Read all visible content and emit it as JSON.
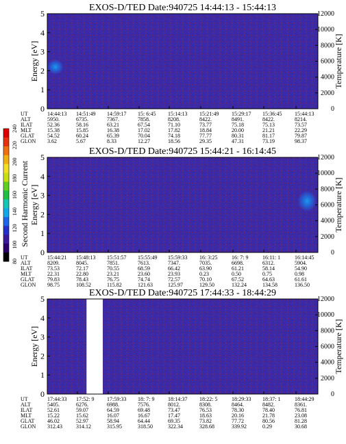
{
  "colorbar": {
    "label": "Second Harmonic Current",
    "ticks": [
      "80",
      "100",
      "120",
      "140",
      "160",
      "180",
      "200",
      "220",
      "240"
    ],
    "colors": [
      "#000000",
      "#2a0068",
      "#3a1a9a",
      "#2430c8",
      "#1d66ea",
      "#10a8e8",
      "#10c8b4",
      "#20c040",
      "#60d020",
      "#c8e010",
      "#f0e020",
      "#f0b010",
      "#f07010",
      "#e83010",
      "#e00000"
    ]
  },
  "colors": {
    "background": "#3a2aa8",
    "speckle": "#5a2a80",
    "enhancement": "#1e6ae0",
    "gap": "#ffffff"
  },
  "chart_data": [
    {
      "type": "heatmap",
      "title": "EXOS-D/TED   Date:940725   14:44:13 - 15:44:13",
      "ylabel": "Energy [eV]",
      "ylim": [
        0,
        5
      ],
      "yticks": [
        "0",
        "1",
        "2",
        "3",
        "4",
        "5"
      ],
      "y2label": "Temperature [K]",
      "y2lim": [
        0,
        12000
      ],
      "y2ticks": [
        "0",
        "2000",
        "4000",
        "6000",
        "8000",
        "10000",
        "12000"
      ],
      "features": [
        {
          "x": 0.03,
          "y": 2.2,
          "w": 0.06,
          "h": 0.8
        }
      ],
      "gaps": [],
      "ephemeris": {
        "labels": [
          "UT",
          "ALT",
          "ILAT",
          "MLT",
          "GLAT",
          "GLON"
        ],
        "columns": [
          [
            "14:44:13",
            "5950.",
            "52.36",
            "15.38",
            "54.52",
            "3.62"
          ],
          [
            "14:51:49",
            "6735.",
            "58.16",
            "15.85",
            "60.24",
            "5.67"
          ],
          [
            "14:59:17",
            "7367.",
            "63.21",
            "16.38",
            "65.39",
            "8.33"
          ],
          [
            "15: 6:45",
            "7858.",
            "67.54",
            "17.02",
            "70.04",
            "12.27"
          ],
          [
            "15:14:13",
            "8208.",
            "71.10",
            "17.82",
            "74.18",
            "18.56"
          ],
          [
            "15:21:49",
            "8422.",
            "73.77",
            "18.84",
            "77.77",
            "29.35"
          ],
          [
            "15:29:17",
            "8491.",
            "75.18",
            "20.00",
            "80.31",
            "47.31"
          ],
          [
            "15:36:45",
            "8422.",
            "75.13",
            "21.21",
            "81.17",
            "73.19"
          ],
          [
            "15:44:13",
            "8214.",
            "73.57",
            "22.29",
            "79.87",
            "98.37"
          ]
        ]
      }
    },
    {
      "type": "heatmap",
      "title": "EXOS-D/TED   Date:940725   15:44:21 - 16:14:45",
      "ylabel": "Energy [eV]",
      "ylim": [
        0,
        5
      ],
      "yticks": [
        "0",
        "1",
        "2",
        "3",
        "4",
        "5"
      ],
      "y2label": "Temperature [K]",
      "y2lim": [
        0,
        12000
      ],
      "y2ticks": [
        "0",
        "2000",
        "4000",
        "6000",
        "8000",
        "10000",
        "12000"
      ],
      "features": [
        {
          "x": 0.96,
          "y": 2.7,
          "w": 0.07,
          "h": 1.1
        }
      ],
      "gaps": [],
      "ephemeris": {
        "labels": [
          "UT",
          "ALT",
          "ILAT",
          "MLT",
          "GLAT",
          "GLON"
        ],
        "columns": [
          [
            "15:44:21",
            "8209.",
            "73.53",
            "22.31",
            "79.83",
            "98.75"
          ],
          [
            "15:48:13",
            "8045.",
            "72.17",
            "22.80",
            "78.43",
            "108.52"
          ],
          [
            "15:51:57",
            "7851.",
            "70.55",
            "23.21",
            "76.75",
            "115.82"
          ],
          [
            "15:55:49",
            "7613.",
            "68.59",
            "23.60",
            "74.74",
            "121.63"
          ],
          [
            "15:59:33",
            "7347.",
            "66.42",
            "23.93",
            "72.57",
            "125.97"
          ],
          [
            "16: 3:25",
            "7035.",
            "63.90",
            "0.23",
            "70.10",
            "129.50"
          ],
          [
            "16: 7: 9",
            "6698.",
            "61.21",
            "0.50",
            "67.52",
            "132.24"
          ],
          [
            "16:11: 1",
            "6312.",
            "58.14",
            "0.75",
            "64.63",
            "134.58"
          ],
          [
            "16:14:45",
            "5904.",
            "54.90",
            "0.98",
            "61.61",
            "136.50"
          ]
        ]
      }
    },
    {
      "type": "heatmap",
      "title": "EXOS-D/TED   Date:940725   17:44:33 - 18:44:29",
      "ylabel": "Energy [eV]",
      "ylim": [
        0,
        5
      ],
      "yticks": [
        "0",
        "1",
        "2",
        "3",
        "4",
        "5"
      ],
      "y2label": "Temperature [K]",
      "y2lim": [
        0,
        12000
      ],
      "y2ticks": [
        "0",
        "2000",
        "4000",
        "6000",
        "8000",
        "10000",
        "12000"
      ],
      "features": [],
      "gaps": [
        {
          "x0": 0.145,
          "x1": 0.205
        }
      ],
      "ephemeris": {
        "labels": [
          "UT",
          "ALT",
          "ILAT",
          "MLT",
          "GLAT",
          "GLON"
        ],
        "columns": [
          [
            "17:44:33",
            "5405.",
            "52.61",
            "15.22",
            "46.02",
            "312.43"
          ],
          [
            "17:52: 9",
            "6276.",
            "59.07",
            "15.62",
            "52.97",
            "314.12"
          ],
          [
            "17:59:33",
            "6988.",
            "64.59",
            "16.07",
            "58.94",
            "315.95"
          ],
          [
            "18: 7: 9",
            "7576.",
            "69.48",
            "16.67",
            "64.44",
            "318.50"
          ],
          [
            "18:14:37",
            "8012.",
            "73.47",
            "17.47",
            "69.35",
            "322.34"
          ],
          [
            "18:22: 5",
            "8308.",
            "76.53",
            "18.63",
            "73.82",
            "328.68"
          ],
          [
            "18:29:33",
            "8464.",
            "78.30",
            "20.16",
            "77.72",
            "339.92"
          ],
          [
            "18:37: 1",
            "8482.",
            "78.40",
            "21.78",
            "80.56",
            "0.29"
          ],
          [
            "18:44:29",
            "8361.",
            "76.81",
            "23.08",
            "81.28",
            "30.68"
          ]
        ]
      }
    }
  ]
}
